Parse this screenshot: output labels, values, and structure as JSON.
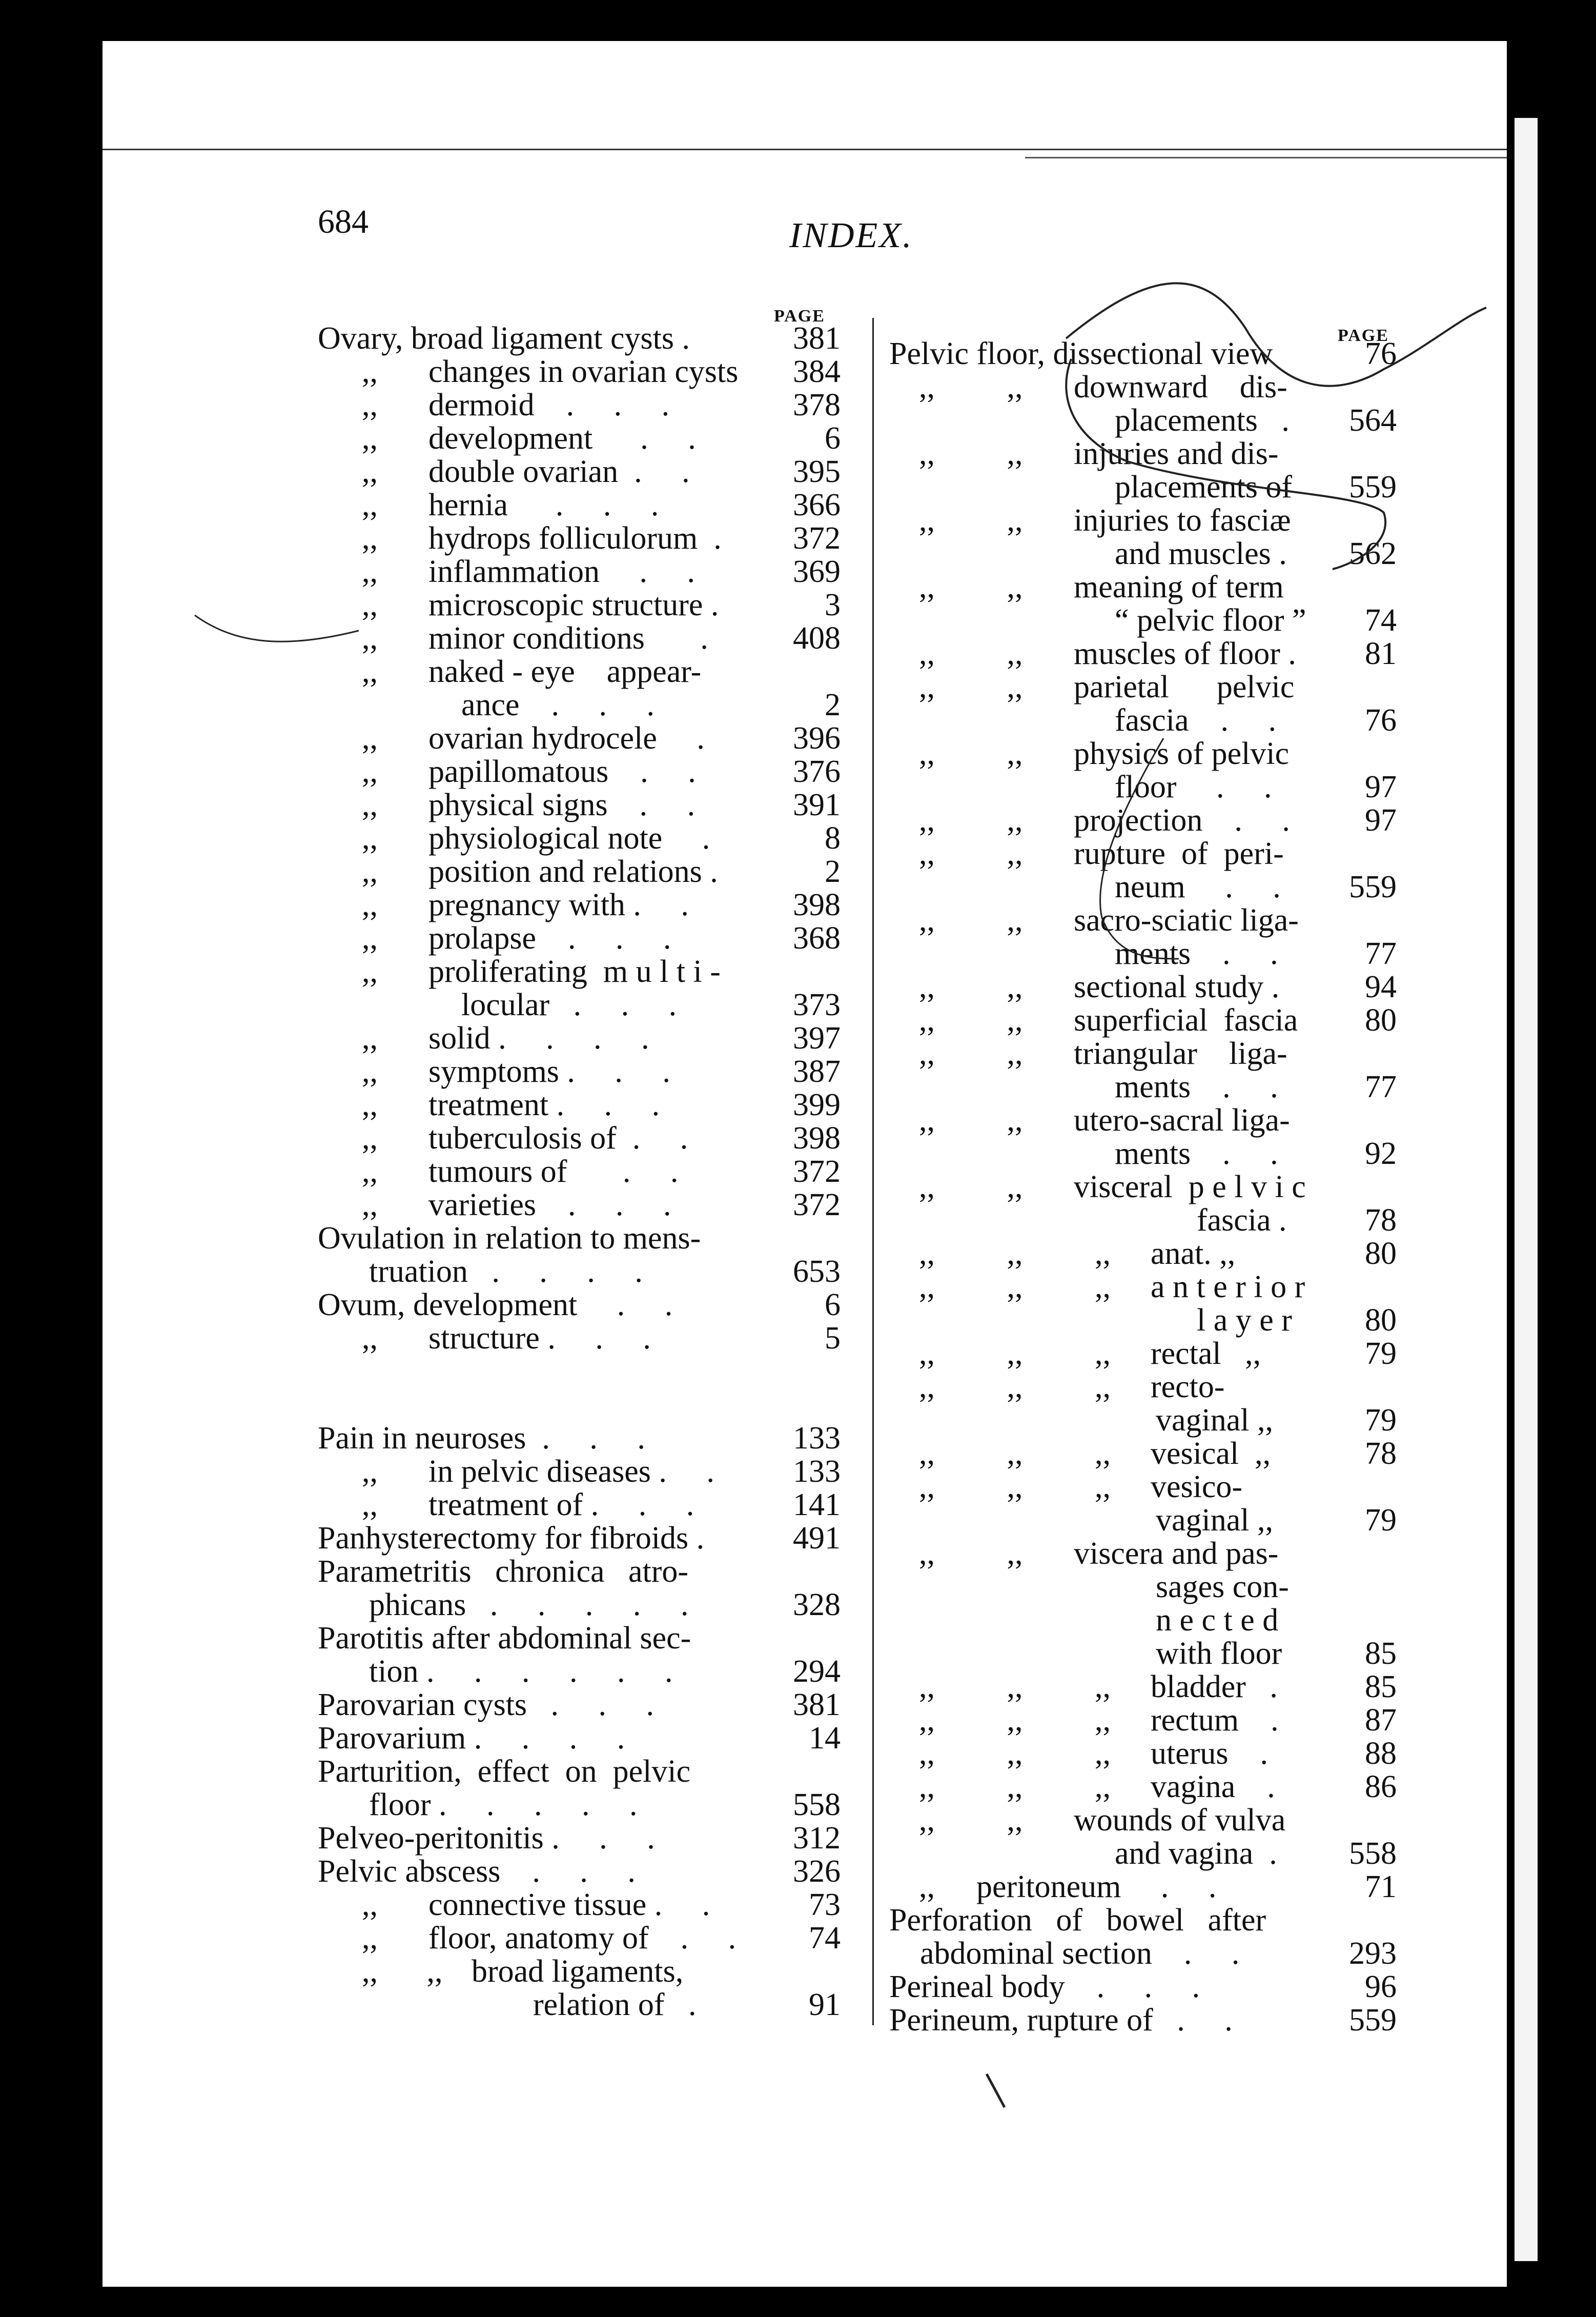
{
  "header": {
    "page_number": "684",
    "title": "INDEX.",
    "page_label_left": "PAGE",
    "page_label_right": "PAGE"
  },
  "left": {
    "rows": [
      {
        "d": "",
        "t": "Ovary, broad ligament cysts .",
        "p": "381"
      },
      {
        "d": ",,",
        "t": "changes in ovarian cysts",
        "p": "384"
      },
      {
        "d": ",,",
        "t": "dermoid    .     .     .",
        "p": "378"
      },
      {
        "d": ",,",
        "t": "development      .     .",
        "p": "6"
      },
      {
        "d": ",,",
        "t": "double ovarian  .     .",
        "p": "395"
      },
      {
        "d": ",,",
        "t": "hernia      .     .     .",
        "p": "366"
      },
      {
        "d": ",,",
        "t": "hydrops folliculorum  .",
        "p": "372"
      },
      {
        "d": ",,",
        "t": "inflammation     .     .",
        "p": "369"
      },
      {
        "d": ",,",
        "t": "microscopic structure .",
        "p": "3"
      },
      {
        "d": ",,",
        "t": "minor conditions       .",
        "p": "408"
      },
      {
        "d": ",,",
        "t": "naked - eye    appear-",
        "p": ""
      },
      {
        "c": 2,
        "t": "ance    .     .     .",
        "p": "2"
      },
      {
        "d": ",,",
        "t": "ovarian hydrocele     .",
        "p": "396"
      },
      {
        "d": ",,",
        "t": "papillomatous    .     .",
        "p": "376"
      },
      {
        "d": ",,",
        "t": "physical signs    .     .",
        "p": "391"
      },
      {
        "d": ",,",
        "t": "physiological note     .",
        "p": "8"
      },
      {
        "d": ",,",
        "t": "position and relations .",
        "p": "2"
      },
      {
        "d": ",,",
        "t": "pregnancy with .     .",
        "p": "398"
      },
      {
        "d": ",,",
        "t": "prolapse    .     .     .",
        "p": "368"
      },
      {
        "d": ",,",
        "t": "proliferating  m u l t i -",
        "p": ""
      },
      {
        "c": 2,
        "t": "locular   .     .     .",
        "p": "373"
      },
      {
        "d": ",,",
        "t": "solid .     .     .     .",
        "p": "397"
      },
      {
        "d": ",,",
        "t": "symptoms .     .     .",
        "p": "387"
      },
      {
        "d": ",,",
        "t": "treatment .     .     .",
        "p": "399"
      },
      {
        "d": ",,",
        "t": "tuberculosis of  .     .",
        "p": "398"
      },
      {
        "d": ",,",
        "t": "tumours of       .     .",
        "p": "372"
      },
      {
        "d": ",,",
        "t": "varieties    .     .     .",
        "p": "372"
      },
      {
        "d": "",
        "t": "Ovulation in relation to mens-",
        "p": ""
      },
      {
        "c": 1,
        "t": "truation   .     .     .     .",
        "p": "653"
      },
      {
        "d": "",
        "t": "Ovum, development     .     .",
        "p": "6"
      },
      {
        "d": ",,",
        "t": "structure .     .     .",
        "p": "5"
      },
      {
        "d": "",
        "t": "",
        "p": ""
      },
      {
        "d": "",
        "t": "",
        "p": ""
      },
      {
        "d": "",
        "t": "Pain in neuroses  .     .     .",
        "p": "133"
      },
      {
        "d": ",,",
        "t": "in pelvic diseases .     .",
        "p": "133"
      },
      {
        "d": ",,",
        "t": "treatment of .     .     .",
        "p": "141"
      },
      {
        "d": "",
        "t": "Panhysterectomy for fibroids .",
        "p": "491"
      },
      {
        "d": "",
        "t": "Parametritis   chronica   atro-",
        "p": ""
      },
      {
        "c": 1,
        "t": "phicans   .     .     .     .     .",
        "p": "328"
      },
      {
        "d": "",
        "t": "Parotitis after abdominal sec-",
        "p": ""
      },
      {
        "c": 1,
        "t": "tion .     .     .     .     .     .",
        "p": "294"
      },
      {
        "d": "",
        "t": "Parovarian cysts   .     .     .",
        "p": "381"
      },
      {
        "d": "",
        "t": "Parovarium .     .     .     .",
        "p": "14"
      },
      {
        "d": "",
        "t": "Parturition,  effect  on  pelvic",
        "p": ""
      },
      {
        "c": 1,
        "t": "floor .     .     .     .     .",
        "p": "558"
      },
      {
        "d": "",
        "t": "Pelveo-peritonitis .     .     .",
        "p": "312"
      },
      {
        "d": "",
        "t": "Pelvic abscess    .     .     .",
        "p": "326"
      },
      {
        "d": ",,",
        "t": "connective tissue .     .",
        "p": "73"
      },
      {
        "d": ",,",
        "t": "floor, anatomy of    .     .",
        "p": "74"
      },
      {
        "d": ",, ,,",
        "t": "broad ligaments,",
        "p": ""
      },
      {
        "c": 3,
        "t": "relation of   .",
        "p": "91"
      }
    ]
  },
  "right": {
    "rows": [
      {
        "d": "",
        "t": "Pelvic floor, dissectional view",
        "p": "76"
      },
      {
        "d": ",, ,,",
        "t": "downward    dis-",
        "p": ""
      },
      {
        "c": 1,
        "t": "placements   .",
        "p": "564"
      },
      {
        "d": ",, ,,",
        "t": "injuries and dis-",
        "p": ""
      },
      {
        "c": 1,
        "t": "placements of",
        "p": "559"
      },
      {
        "d": ",, ,,",
        "t": "injuries to fasciæ",
        "p": ""
      },
      {
        "c": 1,
        "t": "and muscles .",
        "p": "562"
      },
      {
        "d": ",, ,,",
        "t": "meaning of term",
        "p": ""
      },
      {
        "c": 1,
        "t": "“ pelvic floor ”",
        "p": "74"
      },
      {
        "d": ",, ,,",
        "t": "muscles of floor .",
        "p": "81"
      },
      {
        "d": ",, ,,",
        "t": "parietal      pelvic",
        "p": ""
      },
      {
        "c": 1,
        "t": "fascia    .     .",
        "p": "76"
      },
      {
        "d": ",, ,,",
        "t": "physics of pelvic",
        "p": ""
      },
      {
        "c": 1,
        "t": "floor     .     .",
        "p": "97"
      },
      {
        "d": ",, ,,",
        "t": "projection    .     .",
        "p": "97"
      },
      {
        "d": ",, ,,",
        "t": "rupture  of  peri-",
        "p": ""
      },
      {
        "c": 1,
        "t": "neum     .     .",
        "p": "559"
      },
      {
        "d": ",, ,,",
        "t": "sacro-sciatic liga-",
        "p": ""
      },
      {
        "c": 1,
        "t": "ments    .     .",
        "p": "77"
      },
      {
        "d": ",, ,,",
        "t": "sectional study .",
        "p": "94"
      },
      {
        "d": ",, ,,",
        "t": "superficial  fascia",
        "p": "80"
      },
      {
        "d": ",, ,,",
        "t": "triangular    liga-",
        "p": ""
      },
      {
        "c": 1,
        "t": "ments    .     .",
        "p": "77"
      },
      {
        "d": ",, ,,",
        "t": "utero-sacral liga-",
        "p": ""
      },
      {
        "c": 1,
        "t": "ments    .     .",
        "p": "92"
      },
      {
        "d": ",, ,,",
        "t": "visceral  p e l v i c",
        "p": ""
      },
      {
        "c": 2,
        "t": "fascia .",
        "p": "78"
      },
      {
        "d": ",, ,, ,,",
        "t": "anat. ,,",
        "p": "80"
      },
      {
        "d": ",, ,, ,,",
        "t": "a n t e r i o r",
        "p": ""
      },
      {
        "c": 2,
        "t": "l a y e r",
        "p": "80"
      },
      {
        "d": ",, ,, ,,",
        "t": "rectal   ,,",
        "p": "79"
      },
      {
        "d": ",, ,, ,,",
        "t": "recto-",
        "p": ""
      },
      {
        "c": 3,
        "t": "vaginal ,,",
        "p": "79"
      },
      {
        "d": ",, ,, ,,",
        "t": "vesical  ,,",
        "p": "78"
      },
      {
        "d": ",, ,, ,,",
        "t": "vesico-",
        "p": ""
      },
      {
        "c": 3,
        "t": "vaginal ,,",
        "p": "79"
      },
      {
        "d": ",, ,,",
        "t": "viscera and pas-",
        "p": ""
      },
      {
        "c": 3,
        "t": "sages con-",
        "p": ""
      },
      {
        "c": 3,
        "t": "n e c t e d",
        "p": ""
      },
      {
        "c": 3,
        "t": "with floor",
        "p": "85"
      },
      {
        "d": ",, ,, ,,",
        "t": "bladder   .",
        "p": "85"
      },
      {
        "d": ",, ,, ,,",
        "t": "rectum    .",
        "p": "87"
      },
      {
        "d": ",, ,, ,,",
        "t": "uterus    .",
        "p": "88"
      },
      {
        "d": ",, ,, ,,",
        "t": "vagina    .",
        "p": "86"
      },
      {
        "d": ",, ,,",
        "t": "wounds of vulva",
        "p": ""
      },
      {
        "c": 1,
        "t": "and vagina  .",
        "p": "558"
      },
      {
        "d": ",,",
        "t": "peritoneum     .     .",
        "p": "71"
      },
      {
        "d": "",
        "t": "Perforation   of   bowel   after",
        "p": ""
      },
      {
        "c": 4,
        "t": "abdominal section    .     .",
        "p": "293"
      },
      {
        "d": "",
        "t": "Perineal body    .     .     .",
        "p": "96"
      },
      {
        "d": "",
        "t": "Perineum, rupture of   .     .",
        "p": "559"
      }
    ]
  }
}
